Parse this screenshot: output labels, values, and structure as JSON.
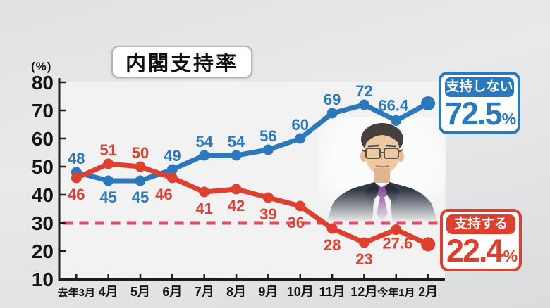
{
  "title": "内閣支持率",
  "y_axis": {
    "unit_label": "(%)",
    "ticks": [
      80,
      70,
      60,
      50,
      40,
      30,
      20,
      10
    ]
  },
  "chart_data": {
    "type": "line",
    "categories": [
      "去年3月",
      "4月",
      "5月",
      "6月",
      "7月",
      "8月",
      "9月",
      "10月",
      "11月",
      "12月",
      "今年1月",
      "2月"
    ],
    "series": [
      {
        "name": "支持しない",
        "color": "#2b79bc",
        "values": [
          48,
          45,
          45,
          49,
          54,
          54,
          56,
          60,
          69,
          72,
          66.4,
          72.5
        ]
      },
      {
        "name": "支持する",
        "color": "#de3f2e",
        "values": [
          46,
          51,
          50,
          46,
          41,
          42,
          39,
          36,
          28,
          23,
          27.6,
          22.4
        ]
      }
    ],
    "ylim": [
      10,
      80
    ],
    "grid": false,
    "reference_line": {
      "value": 30,
      "color": "#d84f66",
      "style": "dashed"
    },
    "legend_position": "right-annotations"
  },
  "annotations": {
    "disapprove": {
      "label": "支持しない",
      "value": "72.5",
      "unit": "%",
      "color": "#2b79bc"
    },
    "approve": {
      "label": "支持する",
      "value": "22.4",
      "unit": "%",
      "color": "#de3f2e"
    }
  },
  "images": {
    "person_photo": "prime-minister-portrait"
  },
  "colors": {
    "axis": "#1d1d1d",
    "plot_bg": "#f2f2f3",
    "outer_bg": "#e3e5e6"
  }
}
